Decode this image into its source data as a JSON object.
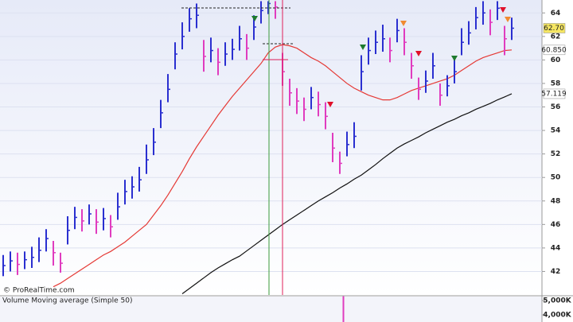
{
  "chart_data": [
    {
      "type": "ohlc",
      "watermark": "© ProRealTime.com",
      "ylim": [
        40,
        65.1
      ],
      "yticks": [
        42,
        44,
        46,
        48,
        50,
        52,
        54,
        56,
        58,
        60,
        62,
        64
      ],
      "grid": true,
      "up_color": "#2a2fd0",
      "down_color": "#e03cbf",
      "high": [
        43.4,
        43.7,
        43.6,
        43.7,
        44.1,
        44.9,
        45.6,
        44.6,
        43.6,
        46.7,
        47.5,
        47.3,
        47.7,
        47.3,
        47.4,
        46.8,
        48.7,
        49.8,
        50.1,
        50.9,
        52.8,
        54.2,
        56.6,
        58.8,
        61.5,
        63.2,
        64.4,
        64.8,
        61.7,
        61.9,
        61.0,
        61.5,
        61.8,
        62.9,
        62.2,
        63.8,
        65.0,
        65.0,
        65.0,
        60.6,
        58.4,
        57.6,
        56.8,
        57.7,
        57.3,
        56.4,
        53.8,
        52.2,
        53.9,
        54.7,
        60.4,
        61.9,
        62.5,
        63.0,
        61.9,
        63.5,
        62.7,
        60.6,
        58.5,
        59.1,
        60.6,
        58.0,
        58.7,
        60.1,
        62.7,
        63.3,
        64.5,
        65.0,
        64.3,
        65.0,
        62.9,
        63.6
      ],
      "low": [
        41.6,
        42.0,
        41.7,
        42.2,
        42.3,
        42.8,
        43.7,
        42.5,
        41.9,
        44.3,
        45.6,
        45.4,
        46.0,
        45.2,
        45.5,
        44.9,
        46.4,
        47.7,
        48.2,
        48.8,
        50.3,
        51.9,
        54.2,
        56.4,
        59.2,
        60.9,
        62.4,
        62.7,
        59.0,
        59.8,
        58.7,
        59.5,
        60.0,
        60.8,
        60.0,
        61.7,
        63.1,
        63.9,
        63.5,
        57.8,
        56.1,
        55.4,
        54.8,
        55.8,
        55.2,
        54.1,
        51.3,
        50.3,
        51.8,
        52.5,
        57.4,
        59.6,
        60.5,
        60.7,
        59.8,
        61.5,
        60.4,
        58.4,
        56.6,
        57.2,
        58.4,
        56.1,
        56.9,
        58.0,
        60.4,
        61.3,
        62.6,
        63.0,
        62.1,
        63.4,
        60.4,
        61.7
      ],
      "close": [
        42.5,
        42.9,
        42.6,
        43.0,
        43.2,
        43.8,
        44.8,
        43.6,
        42.7,
        45.5,
        46.6,
        46.3,
        46.9,
        46.2,
        46.5,
        45.8,
        47.5,
        48.8,
        49.2,
        49.8,
        51.5,
        53.0,
        55.5,
        57.5,
        60.5,
        62.0,
        63.5,
        63.8,
        60.3,
        60.8,
        59.8,
        60.5,
        60.9,
        61.8,
        61.0,
        62.8,
        64.2,
        64.8,
        64.5,
        59.0,
        57.2,
        56.5,
        55.8,
        56.8,
        56.2,
        55.2,
        52.5,
        51.2,
        52.8,
        53.5,
        59.0,
        60.8,
        61.5,
        61.8,
        60.8,
        62.5,
        61.5,
        59.5,
        57.5,
        58.2,
        59.5,
        57.0,
        57.8,
        59.0,
        61.5,
        62.3,
        63.6,
        64.0,
        63.2,
        64.4,
        61.8,
        62.7
      ],
      "moving_averages": [
        {
          "color": "#e53935",
          "values": [
            null,
            null,
            null,
            null,
            null,
            null,
            null,
            40.7,
            41.0,
            41.4,
            41.8,
            42.2,
            42.6,
            43.0,
            43.4,
            43.7,
            44.1,
            44.5,
            45.0,
            45.5,
            46.0,
            46.8,
            47.6,
            48.5,
            49.5,
            50.5,
            51.6,
            52.6,
            53.5,
            54.4,
            55.3,
            56.1,
            56.9,
            57.6,
            58.3,
            59.0,
            59.7,
            60.6,
            61.1,
            61.3,
            61.2,
            61.0,
            60.6,
            60.2,
            59.9,
            59.5,
            59.0,
            58.5,
            58.0,
            57.6,
            57.3,
            57.0,
            56.8,
            56.6,
            56.6,
            56.8,
            57.1,
            57.4,
            57.6,
            57.8,
            58.0,
            58.2,
            58.4,
            58.7,
            59.1,
            59.5,
            59.9,
            60.2,
            60.4,
            60.6,
            60.8,
            60.85
          ]
        },
        {
          "color": "#111111",
          "values": [
            null,
            null,
            null,
            null,
            null,
            null,
            null,
            null,
            null,
            null,
            null,
            null,
            null,
            null,
            null,
            null,
            null,
            null,
            null,
            null,
            null,
            null,
            null,
            null,
            null,
            40.1,
            40.55,
            41.0,
            41.45,
            41.9,
            42.3,
            42.65,
            43.0,
            43.3,
            43.75,
            44.2,
            44.65,
            45.1,
            45.55,
            46.0,
            46.4,
            46.8,
            47.2,
            47.6,
            48.0,
            48.35,
            48.7,
            49.1,
            49.45,
            49.85,
            50.2,
            50.65,
            51.1,
            51.6,
            52.05,
            52.5,
            52.85,
            53.15,
            53.45,
            53.8,
            54.1,
            54.4,
            54.7,
            54.95,
            55.25,
            55.5,
            55.8,
            56.05,
            56.3,
            56.6,
            56.85,
            57.119
          ]
        }
      ],
      "price_labels": [
        {
          "value": 62.7,
          "label": "62.70",
          "color": "#f5e663"
        },
        {
          "value": 60.85,
          "label": "60.850",
          "color": "#ffffff"
        },
        {
          "value": 57.119,
          "label": "57.119",
          "color": "#ffffff"
        }
      ]
    },
    {
      "type": "bar",
      "title": "Volume Moving average (Simple 50)",
      "color": "#e03cbf",
      "ylim": [
        3500000,
        5333000
      ],
      "yticks": [
        {
          "value": 5000000,
          "label": "5,000K"
        },
        {
          "value": 4000000,
          "label": "4,000K"
        }
      ],
      "x": [
        47.5
      ],
      "values": [
        5300000
      ]
    }
  ]
}
